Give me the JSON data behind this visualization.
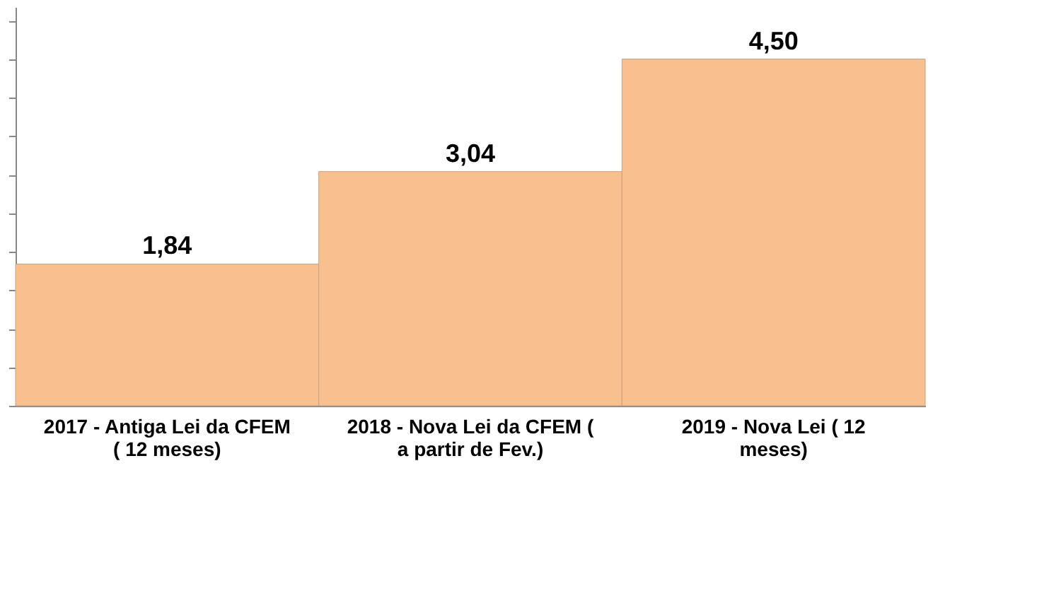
{
  "chart_data": {
    "type": "bar",
    "categories": [
      "2017 - Antiga Lei da CFEM ( 12 meses)",
      "2018 - Nova Lei da CFEM ( a partir de Fev.)",
      "2019 - Nova Lei ( 12 meses)"
    ],
    "values": [
      1.84,
      3.04,
      4.5
    ],
    "value_labels": [
      "1,84",
      "3,04",
      "4,50"
    ],
    "color": "#f9c08f",
    "tick_labels": "x"
  }
}
